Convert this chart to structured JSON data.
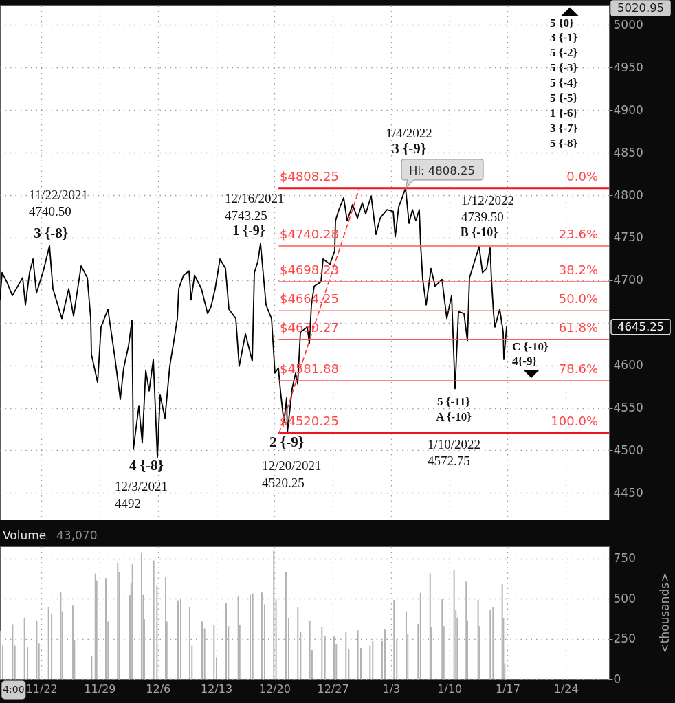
{
  "chart_data": [
    {
      "type": "line",
      "xlim": [
        "2021-11-17T00:40",
        "2022-01-29T04:35"
      ],
      "xticks": [
        "2021-11-22",
        "2021-11-29",
        "2021-12-06",
        "2021-12-13",
        "2021-12-20",
        "2021-12-27",
        "2022-01-03",
        "2022-01-10",
        "2022-01-17",
        "2022-01-24"
      ],
      "ylim": [
        4418,
        5023
      ],
      "yticks": [
        4450,
        4500,
        4550,
        4600,
        {
          "value": 4650,
          "label": null
        },
        4700,
        4750,
        4800,
        4850,
        4900,
        4950,
        5000
      ],
      "grid": true,
      "tick_labels": "y",
      "series": [
        {
          "color": "#000000",
          "x": [
            "2021-11-17T00:40",
            "2021-11-17T06:40",
            "2021-11-17T20:30",
            "2021-11-18T12:20",
            "2021-11-19T17:55",
            "2021-11-20T02:00",
            "2021-11-20T13:55",
            "2021-11-20T23:50",
            "2021-11-21T09:45",
            "2021-11-22T05:35",
            "2021-11-22T23:25",
            "2021-11-23T09:15",
            "2021-11-24T11:05",
            "2021-11-25T06:55",
            "2021-11-25T20:45",
            "2021-11-26T18:35",
            "2021-11-27T12:25",
            "2021-11-27T22:20",
            "2021-11-28T00:15",
            "2021-11-28T18:05",
            "2021-11-29T04:00",
            "2021-11-29T23:50",
            "2021-11-30T19:40",
            "2021-12-01T11:30",
            "2021-12-01T21:25",
            "2021-12-02T11:20",
            "2021-12-02T21:15",
            "2021-12-03T01:10",
            "2021-12-03T17:00",
            "2021-12-04T02:55",
            "2021-12-04T12:50",
            "2021-12-04T22:45",
            "2021-12-05T10:40",
            "2021-12-05T22:30",
            "2021-12-06T06:25",
            "2021-12-06T20:20",
            "2021-12-07T10:10",
            "2021-12-07T22:05",
            "2021-12-08T08:00",
            "2021-12-08T12:00",
            "2021-12-09T01:50",
            "2021-12-09T17:40",
            "2021-12-09T23:40",
            "2021-12-10T09:35",
            "2021-12-11T05:20",
            "2021-12-11T23:15",
            "2021-12-12T09:05",
            "2021-12-12T21:00",
            "2021-12-13T10:55",
            "2021-12-14T02:45",
            "2021-12-14T12:40",
            "2021-12-15T08:30",
            "2021-12-15T18:20",
            "2021-12-16T12:15",
            "2021-12-17T08:00",
            "2021-12-17T14:00",
            "2021-12-17T23:55",
            "2021-12-18T07:50",
            "2021-12-18T23:40",
            "2021-12-19T15:30",
            "2021-12-20T01:25",
            "2021-12-20T11:20",
            "2021-12-20T17:15",
            "2021-12-21T03:10",
            "2021-12-21T11:05",
            "2021-12-21T13:05",
            "2021-12-22T03:00",
            "2021-12-22T12:55",
            "2021-12-22T18:50",
            "2021-12-23T02:45",
            "2021-12-23T22:35",
            "2021-12-24T04:30",
            "2021-12-24T10:30",
            "2021-12-24T18:25",
            "2021-12-25T14:10",
            "2021-12-25T20:10",
            "2021-12-26T16:00",
            "2021-12-27T05:50",
            "2021-12-27T07:50",
            "2021-12-27T17:45",
            "2021-12-28T07:35",
            "2021-12-28T17:30",
            "2021-12-29T09:25",
            "2021-12-29T23:15",
            "2021-12-30T13:10",
            "2021-12-30T23:00",
            "2021-12-31T14:55",
            "2022-01-01T04:45",
            "2022-01-01T16:40",
            "2022-01-02T12:25",
            "2022-01-03T06:20",
            "2022-01-03T12:15",
            "2022-01-03T22:10",
            "2022-01-04T08:05",
            "2022-01-04T18:00",
            "2022-01-05T03:55",
            "2022-01-05T13:50",
            "2022-01-05T23:45",
            "2022-01-06T09:35",
            "2022-01-06T13:35",
            "2022-01-06T19:30",
            "2022-01-07T05:25",
            "2022-01-07T19:20",
            "2022-01-08T07:10",
            "2022-01-09T03:00",
            "2022-01-09T16:55",
            "2022-01-10T06:45",
            "2022-01-10T16:40",
            "2022-01-11T02:35",
            "2022-01-11T18:25",
            "2022-01-12T04:20",
            "2022-01-12T10:15",
            "2022-01-13T14:00",
            "2022-01-13T23:55",
            "2022-01-14T11:50",
            "2022-01-14T21:45",
            "2022-01-15T01:40",
            "2022-01-15T07:40",
            "2022-01-15T11:35",
            "2022-01-16T01:30",
            "2022-01-16T11:25",
            "2022-01-16T13:25",
            "2022-01-16T21:20"
          ],
          "values": [
            4677,
            4709,
            4698,
            4682,
            4703,
            4671,
            4709,
            4725,
            4685,
            4711,
            4740.5,
            4690,
            4655,
            4690,
            4658,
            4717,
            4703,
            4655,
            4613,
            4580,
            4645,
            4666,
            4610,
            4560,
            4597,
            4623,
            4653,
            4501,
            4552,
            4509,
            4594,
            4570,
            4607,
            4492,
            4565,
            4538,
            4599,
            4629,
            4655,
            4690,
            4706,
            4711,
            4677,
            4706,
            4690,
            4661,
            4669,
            4690,
            4725,
            4714,
            4666,
            4655,
            4599,
            4637,
            4605,
            4709,
            4722,
            4743.25,
            4671,
            4655,
            4591,
            4597,
            4570,
            4533,
            4562,
            4520.25,
            4573,
            4591,
            4578,
            4639,
            4645,
            4626,
            4671,
            4693,
            4698,
            4725,
            4719,
            4735,
            4770,
            4783,
            4797,
            4770,
            4789,
            4773,
            4791,
            4778,
            4799,
            4754,
            4773,
            4783,
            4781,
            4751,
            4786,
            4797,
            4808.25,
            4767,
            4783,
            4770,
            4783,
            4741,
            4701,
            4671,
            4714,
            4693,
            4701,
            4655,
            4682,
            4572.75,
            4663,
            4661,
            4629,
            4703,
            4739.5,
            4709,
            4714,
            4738,
            4701,
            4661,
            4645,
            4666,
            4639,
            4607,
            4645.25
          ]
        },
        {
          "color": "#f0141e",
          "x": [
            "2021-12-20T13:20",
            "2022-01-29T04:35"
          ],
          "values": [
            4808.25,
            4808.25
          ]
        },
        {
          "color": "#ff5a5a",
          "x": [
            "2021-12-20T13:20",
            "2022-01-29T04:35"
          ],
          "values": [
            4740.28,
            4740.28
          ]
        },
        {
          "color": "#ff5a5a",
          "x": [
            "2021-12-20T13:20",
            "2022-01-29T04:35"
          ],
          "values": [
            4698.23,
            4698.23
          ]
        },
        {
          "color": "#ff5a5a",
          "x": [
            "2021-12-20T13:20",
            "2022-01-29T04:35"
          ],
          "values": [
            4664.25,
            4664.25
          ]
        },
        {
          "color": "#ff5a5a",
          "x": [
            "2021-12-20T13:20",
            "2022-01-29T04:35"
          ],
          "values": [
            4630.27,
            4630.27
          ]
        },
        {
          "color": "#ff5a5a",
          "x": [
            "2021-12-20T13:20",
            "2022-01-29T04:35"
          ],
          "values": [
            4581.88,
            4581.88
          ]
        },
        {
          "color": "#f0141e",
          "x": [
            "2021-12-20T13:20",
            "2022-01-29T04:35"
          ],
          "values": [
            4520.25,
            4520.25
          ]
        },
        {
          "color": "#ff3030",
          "line_style": "dashed",
          "x": [
            "2021-12-20T13:20",
            "2021-12-30T05:10"
          ],
          "values": [
            4520.25,
            4808.25
          ]
        }
      ],
      "annotations": [
        {
          "text": "11/22/2021\n4740.50",
          "x": "2021-11-22T23:25",
          "y": 4740.5
        },
        {
          "text": "3 {-8}",
          "x": "2021-11-22T23:25",
          "y": 4740.5
        },
        {
          "text": "4 {-8}",
          "x": "2021-12-05T22:30",
          "y": 4492
        },
        {
          "text": "12/3/2021\n4492",
          "x": "2021-12-05T22:30",
          "y": 4492
        },
        {
          "text": "12/16/2021\n4743.25",
          "x": "2021-12-18T07:50",
          "y": 4743.25
        },
        {
          "text": "1 {-9}",
          "x": "2021-12-18T07:50",
          "y": 4743.25
        },
        {
          "text": "2 {-9}",
          "x": "2021-12-21T13:05",
          "y": 4520.25
        },
        {
          "text": "12/20/2021\n4520.25",
          "x": "2021-12-21T13:05",
          "y": 4520.25
        },
        "1/4/2022",
        {
          "text": "3 {-9}",
          "x": "2022-01-04T18:00",
          "y": 4808.25
        },
        {
          "text": "Hi: 4808.25",
          "x": "2022-01-04T18:00",
          "y": 4808.25
        },
        {
          "text": "1/12/2022\n4739.50",
          "x": "2022-01-13T14:00",
          "y": 4739.5
        },
        {
          "text": "B {-10}",
          "x": "2022-01-13T14:00",
          "y": 4739.5
        },
        {
          "text": "5 {-11}\nA {-10}",
          "x": "2022-01-10T16:40",
          "y": 4572.75
        },
        "1/10/2022\n4572.75",
        {
          "text": "C {-10}\n4{-9}",
          "x": "2022-01-16T13:25",
          "y": 4607
        },
        "5 {0}\n3 {-1}\n5 {-2}\n5 {-3}\n5 {-4}\n5 {-5}\n1 {-6}\n3 {-7}\n5 {-8}",
        {
          "text": "$4808.25",
          "x": "2021-12-20T13:20",
          "y": 4808.25
        },
        {
          "text": "$4740.28",
          "x": "2021-12-20T13:20",
          "y": 4740.28
        },
        {
          "text": "$4698.23",
          "x": "2021-12-20T13:20",
          "y": 4698.23
        },
        {
          "text": "$4664.25",
          "x": "2021-12-20T13:20",
          "y": 4664.25
        },
        {
          "text": "$4630.27",
          "x": "2021-12-20T13:20",
          "y": 4630.27
        },
        {
          "text": "$4581.88",
          "x": "2021-12-20T13:20",
          "y": 4581.88
        },
        {
          "text": "$4520.25",
          "x": "2021-12-20T13:20",
          "y": 4520.25
        },
        {
          "text": "0.0%",
          "x": "2022-01-29T04:35",
          "y": 4808.25
        },
        {
          "text": "23.6%",
          "x": "2022-01-29T04:35",
          "y": 4740.28
        },
        {
          "text": "38.2%",
          "x": "2022-01-29T04:35",
          "y": 4698.23
        },
        {
          "text": "50.0%",
          "x": "2022-01-29T04:35",
          "y": 4664.25
        },
        {
          "text": "61.8%",
          "x": "2022-01-29T04:35",
          "y": 4630.27
        },
        {
          "text": "78.6%",
          "x": "2022-01-29T04:35",
          "y": 4581.88
        },
        {
          "text": "100.0%",
          "x": "2022-01-29T04:35",
          "y": 4520.25
        },
        "5020.95",
        "4645.25"
      ]
    },
    {
      "type": "bar",
      "title": "Volume",
      "ylabel": "<thousands>",
      "color": "#b3b3b3",
      "grid": true,
      "xlim": [
        "2021-11-17T00:40",
        "2022-01-29T04:35"
      ],
      "xticks": [
        {
          "value": "2021-11-22",
          "label": "11/22"
        },
        {
          "value": "2021-11-29",
          "label": "11/29"
        },
        {
          "value": "2021-12-06",
          "label": "12/6"
        },
        {
          "value": "2021-12-13",
          "label": "12/13"
        },
        {
          "value": "2021-12-20",
          "label": "12/20"
        },
        {
          "value": "2021-12-27",
          "label": "12/27"
        },
        {
          "value": "2022-01-03",
          "label": "1/3"
        },
        {
          "value": "2022-01-10",
          "label": "1/10"
        },
        {
          "value": "2022-01-17",
          "label": "1/17"
        },
        {
          "value": "2022-01-24",
          "label": "1/24"
        }
      ],
      "ylim": [
        0,
        825
      ],
      "yticks": [
        0,
        250,
        500,
        750
      ],
      "x": [
        "2021-11-17T02:00",
        "2021-11-17T08:35",
        "2021-11-18T13:05",
        "2021-11-18T19:40",
        "2021-11-19T23:25",
        "2021-11-20T08:05",
        "2021-11-21T10:25",
        "2021-11-21T17:00",
        "2021-11-22T20:45",
        "2021-11-23T05:25",
        "2021-11-24T07:45",
        "2021-11-24T12:15",
        "2021-11-25T18:50",
        "2021-11-25T23:20",
        "2021-11-28T00:55",
        "2021-11-28T11:40",
        "2021-11-28T15:30",
        "2021-11-29T17:50",
        "2021-11-30T00:25",
        "2021-12-01T04:10",
        "2021-12-01T08:20",
        "2021-12-02T15:15",
        "2021-12-02T18:40",
        "2021-12-02T22:30",
        "2021-12-04T00:50",
        "2021-12-04T05:45",
        "2021-12-04T08:50",
        "2021-12-05T11:55",
        "2021-12-05T21:15",
        "2021-12-06T22:15",
        "2021-12-07T01:40",
        "2021-12-08T09:55",
        "2021-12-08T17:55",
        "2021-12-09T19:35",
        "2021-12-10T02:10",
        "2021-12-11T07:20",
        "2021-12-11T14:35",
        "2021-12-12T17:40",
        "2021-12-13T00:55",
        "2021-12-14T04:40",
        "2021-12-14T11:15",
        "2021-12-15T15:40",
        "2021-12-15T19:50",
        "2021-12-17T02:00",
        "2021-12-17T09:20",
        "2021-12-18T11:40",
        "2021-12-18T19:40",
        "2021-12-19T22:00",
        "2021-12-20T04:35",
        "2021-12-21T09:00",
        "2021-12-21T17:00",
        "2021-12-22T19:20",
        "2021-12-23T03:20",
        "2021-12-24T05:45",
        "2021-12-24T12:15",
        "2021-12-25T16:45",
        "2021-12-26T01:25",
        "2021-12-27T03:45",
        "2021-12-27T10:20",
        "2021-12-28T14:05",
        "2021-12-28T22:05",
        "2021-12-30T00:25",
        "2021-12-30T09:05",
        "2021-12-31T11:30",
        "2021-12-31T19:25",
        "2022-01-01T22:30",
        "2022-01-02T06:30",
        "2022-01-03T08:50",
        "2022-01-03T16:50",
        "2022-01-04T19:55",
        "2022-01-05T00:25",
        "2022-01-06T06:15",
        "2022-01-06T13:10",
        "2022-01-07T16:55",
        "2022-01-07T20:00",
        "2022-01-09T03:35",
        "2022-01-09T08:25",
        "2022-01-10T13:55",
        "2022-01-10T19:05",
        "2022-01-10T23:15",
        "2022-01-12T00:55",
        "2022-01-12T04:25",
        "2022-01-13T11:15",
        "2022-01-13T14:45",
        "2022-01-14T22:20",
        "2022-01-15T06:15",
        "2022-01-16T08:40",
        "2022-01-16T12:05",
        "2022-01-16T15:55"
      ],
      "values": [
        300,
        207,
        340,
        207,
        381,
        200,
        364,
        221,
        445,
        407,
        538,
        421,
        456,
        239,
        143,
        656,
        613,
        627,
        357,
        720,
        663,
        521,
        595,
        713,
        788,
        523,
        371,
        737,
        578,
        632,
        357,
        489,
        502,
        445,
        207,
        357,
        314,
        338,
        136,
        470,
        328,
        514,
        338,
        523,
        532,
        538,
        464,
        798,
        495,
        663,
        378,
        445,
        295,
        364,
        179,
        321,
        268,
        264,
        218,
        295,
        186,
        303,
        193,
        207,
        236,
        236,
        307,
        492,
        239,
        421,
        278,
        342,
        535,
        656,
        321,
        499,
        328,
        680,
        428,
        381,
        606,
        364,
        492,
        328,
        432,
        449,
        589,
        381,
        96
      ],
      "annotations": [
        "43,070",
        {
          "text": "4:00",
          "x": "2021-11-18T16:00"
        }
      ]
    }
  ]
}
